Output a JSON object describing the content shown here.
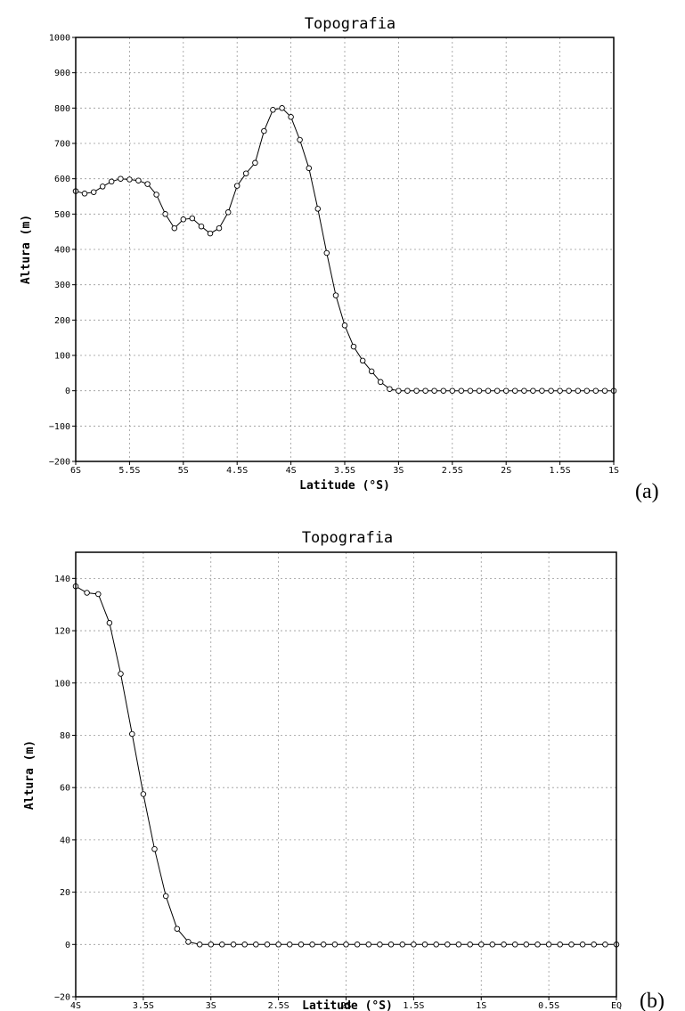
{
  "chart_data": [
    {
      "type": "line",
      "panel_label": "(a)",
      "title": "Topografia",
      "xlabel": "Latitude (°S)",
      "ylabel": "Altura (m)",
      "xlim": [
        -6,
        -1
      ],
      "ylim": [
        -200,
        1000
      ],
      "grid": true,
      "xticks": [
        {
          "v": -6,
          "label": "6S"
        },
        {
          "v": -5.5,
          "label": "5.5S"
        },
        {
          "v": -5,
          "label": "5S"
        },
        {
          "v": -4.5,
          "label": "4.5S"
        },
        {
          "v": -4,
          "label": "4S"
        },
        {
          "v": -3.5,
          "label": "3.5S"
        },
        {
          "v": -3,
          "label": "3S"
        },
        {
          "v": -2.5,
          "label": "2.5S"
        },
        {
          "v": -2,
          "label": "2S"
        },
        {
          "v": -1.5,
          "label": "1.5S"
        },
        {
          "v": -1,
          "label": "1S"
        }
      ],
      "yticks": [
        -200,
        -100,
        0,
        100,
        200,
        300,
        400,
        500,
        600,
        700,
        800,
        900,
        1000
      ],
      "x": [
        -6.0,
        -5.917,
        -5.833,
        -5.75,
        -5.667,
        -5.583,
        -5.5,
        -5.417,
        -5.333,
        -5.25,
        -5.167,
        -5.083,
        -5.0,
        -4.917,
        -4.833,
        -4.75,
        -4.667,
        -4.583,
        -4.5,
        -4.417,
        -4.333,
        -4.25,
        -4.167,
        -4.083,
        -4.0,
        -3.917,
        -3.833,
        -3.75,
        -3.667,
        -3.583,
        -3.5,
        -3.417,
        -3.333,
        -3.25,
        -3.167,
        -3.083,
        -3.0,
        -2.917,
        -2.833,
        -2.75,
        -2.667,
        -2.583,
        -2.5,
        -2.417,
        -2.333,
        -2.25,
        -2.167,
        -2.083,
        -2.0,
        -1.917,
        -1.833,
        -1.75,
        -1.667,
        -1.583,
        -1.5,
        -1.417,
        -1.333,
        -1.25,
        -1.167,
        -1.083,
        -1.0
      ],
      "y": [
        565,
        558,
        562,
        578,
        592,
        600,
        598,
        595,
        585,
        555,
        500,
        460,
        485,
        488,
        465,
        445,
        460,
        505,
        580,
        615,
        645,
        735,
        795,
        800,
        775,
        710,
        630,
        515,
        390,
        270,
        185,
        125,
        85,
        55,
        25,
        5,
        0,
        0,
        0,
        0,
        0,
        0,
        0,
        0,
        0,
        0,
        0,
        0,
        0,
        0,
        0,
        0,
        0,
        0,
        0,
        0,
        0,
        0,
        0,
        0,
        0
      ]
    },
    {
      "type": "line",
      "panel_label": "(b)",
      "title": "Topografia",
      "xlabel": "Latitude (°S)",
      "ylabel": "Altura (m)",
      "xlim": [
        -4,
        0
      ],
      "ylim": [
        -20,
        150
      ],
      "grid": true,
      "xticks": [
        {
          "v": -4,
          "label": "4S"
        },
        {
          "v": -3.5,
          "label": "3.5S"
        },
        {
          "v": -3,
          "label": "3S"
        },
        {
          "v": -2.5,
          "label": "2.5S"
        },
        {
          "v": -2,
          "label": "2S"
        },
        {
          "v": -1.5,
          "label": "1.5S"
        },
        {
          "v": -1,
          "label": "1S"
        },
        {
          "v": -0.5,
          "label": "0.5S"
        },
        {
          "v": 0,
          "label": "EQ"
        }
      ],
      "yticks": [
        -20,
        0,
        20,
        40,
        60,
        80,
        100,
        120,
        140
      ],
      "x": [
        -4.0,
        -3.917,
        -3.833,
        -3.75,
        -3.667,
        -3.583,
        -3.5,
        -3.417,
        -3.333,
        -3.25,
        -3.167,
        -3.083,
        -3.0,
        -2.917,
        -2.833,
        -2.75,
        -2.667,
        -2.583,
        -2.5,
        -2.417,
        -2.333,
        -2.25,
        -2.167,
        -2.083,
        -2.0,
        -1.917,
        -1.833,
        -1.75,
        -1.667,
        -1.583,
        -1.5,
        -1.417,
        -1.333,
        -1.25,
        -1.167,
        -1.083,
        -1.0,
        -0.917,
        -0.833,
        -0.75,
        -0.667,
        -0.583,
        -0.5,
        -0.417,
        -0.333,
        -0.25,
        -0.167,
        -0.083,
        0.0
      ],
      "y": [
        137,
        134.5,
        134,
        123,
        103.5,
        80.5,
        57.5,
        36.5,
        18.5,
        6,
        1,
        0,
        0,
        0,
        0,
        0,
        0,
        0,
        0,
        0,
        0,
        0,
        0,
        0,
        0,
        0,
        0,
        0,
        0,
        0,
        0,
        0,
        0,
        0,
        0,
        0,
        0,
        0,
        0,
        0,
        0,
        0,
        0,
        0,
        0,
        0,
        0,
        0,
        0
      ]
    }
  ]
}
